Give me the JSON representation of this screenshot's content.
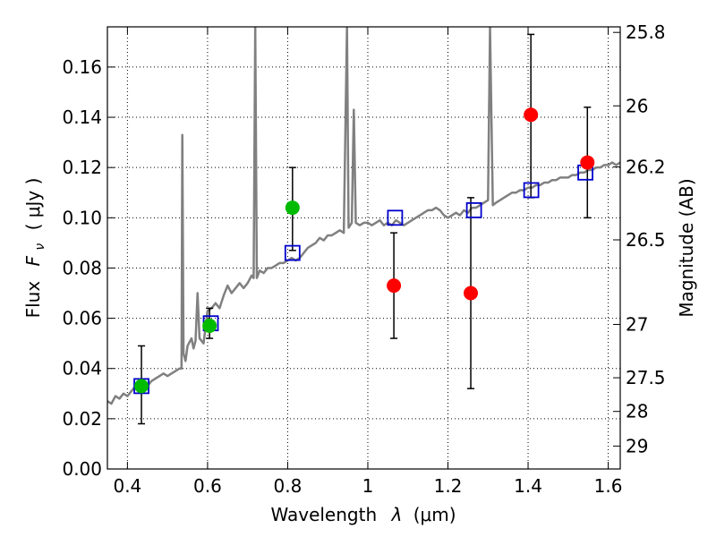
{
  "chart_data": {
    "type": "scatter",
    "xlabel_prefix": "Wavelength",
    "xlabel_lambda": "λ",
    "xlabel_unit": "(μm)",
    "ylabel_left_prefix": "Flux",
    "ylabel_left_sym": "F",
    "ylabel_left_sub": "ν",
    "ylabel_left_unit": "( μJy )",
    "ylabel_right": "Magnitude (AB)",
    "xlim": [
      0.35,
      1.63
    ],
    "ylim": [
      0.0,
      0.176
    ],
    "grid": true,
    "x_ticks": [
      {
        "value": 0.4,
        "label": "0.4"
      },
      {
        "value": 0.6,
        "label": "0.6"
      },
      {
        "value": 0.8,
        "label": "0.8"
      },
      {
        "value": 1.0,
        "label": "1"
      },
      {
        "value": 1.2,
        "label": "1.2"
      },
      {
        "value": 1.4,
        "label": "1.4"
      },
      {
        "value": 1.6,
        "label": "1.6"
      }
    ],
    "y_ticks": [
      {
        "value": 0.0,
        "label": "0.00"
      },
      {
        "value": 0.02,
        "label": "0.02"
      },
      {
        "value": 0.04,
        "label": "0.04"
      },
      {
        "value": 0.06,
        "label": "0.06"
      },
      {
        "value": 0.08,
        "label": "0.08"
      },
      {
        "value": 0.1,
        "label": "0.10"
      },
      {
        "value": 0.12,
        "label": "0.12"
      },
      {
        "value": 0.14,
        "label": "0.14"
      },
      {
        "value": 0.16,
        "label": "0.16"
      }
    ],
    "right_ticks": [
      {
        "label": "25.8",
        "mag": 25.8
      },
      {
        "label": "26",
        "mag": 26.0
      },
      {
        "label": "26.2",
        "mag": 26.2
      },
      {
        "label": "26.5",
        "mag": 26.5
      },
      {
        "label": "27",
        "mag": 27.0
      },
      {
        "label": "27.5",
        "mag": 27.5
      },
      {
        "label": "28",
        "mag": 28.0
      },
      {
        "label": "29",
        "mag": 29.0
      }
    ],
    "spectrum": {
      "color": "#808080",
      "points": [
        [
          0.35,
          0.027
        ],
        [
          0.36,
          0.026
        ],
        [
          0.37,
          0.029
        ],
        [
          0.38,
          0.028
        ],
        [
          0.39,
          0.03
        ],
        [
          0.4,
          0.029
        ],
        [
          0.41,
          0.031
        ],
        [
          0.42,
          0.033
        ],
        [
          0.43,
          0.032
        ],
        [
          0.44,
          0.034
        ],
        [
          0.45,
          0.033
        ],
        [
          0.46,
          0.035
        ],
        [
          0.47,
          0.036
        ],
        [
          0.48,
          0.037
        ],
        [
          0.49,
          0.038
        ],
        [
          0.5,
          0.037
        ],
        [
          0.51,
          0.038
        ],
        [
          0.52,
          0.039
        ],
        [
          0.53,
          0.04
        ],
        [
          0.535,
          0.04
        ],
        [
          0.537,
          0.133
        ],
        [
          0.54,
          0.046
        ],
        [
          0.545,
          0.043
        ],
        [
          0.55,
          0.049
        ],
        [
          0.56,
          0.052
        ],
        [
          0.565,
          0.048
        ],
        [
          0.57,
          0.051
        ],
        [
          0.575,
          0.07
        ],
        [
          0.58,
          0.052
        ],
        [
          0.59,
          0.05
        ],
        [
          0.6,
          0.063
        ],
        [
          0.61,
          0.064
        ],
        [
          0.62,
          0.066
        ],
        [
          0.63,
          0.064
        ],
        [
          0.64,
          0.069
        ],
        [
          0.65,
          0.073
        ],
        [
          0.66,
          0.07
        ],
        [
          0.67,
          0.072
        ],
        [
          0.68,
          0.074
        ],
        [
          0.69,
          0.072
        ],
        [
          0.7,
          0.074
        ],
        [
          0.71,
          0.077
        ],
        [
          0.715,
          0.076
        ],
        [
          0.719,
          0.176
        ],
        [
          0.723,
          0.076
        ],
        [
          0.73,
          0.079
        ],
        [
          0.74,
          0.078
        ],
        [
          0.75,
          0.08
        ],
        [
          0.76,
          0.08
        ],
        [
          0.77,
          0.081
        ],
        [
          0.78,
          0.082
        ],
        [
          0.79,
          0.082
        ],
        [
          0.8,
          0.083
        ],
        [
          0.81,
          0.084
        ],
        [
          0.82,
          0.083
        ],
        [
          0.83,
          0.084
        ],
        [
          0.84,
          0.086
        ],
        [
          0.85,
          0.088
        ],
        [
          0.86,
          0.089
        ],
        [
          0.87,
          0.09
        ],
        [
          0.88,
          0.092
        ],
        [
          0.89,
          0.091
        ],
        [
          0.9,
          0.093
        ],
        [
          0.91,
          0.093
        ],
        [
          0.92,
          0.094
        ],
        [
          0.93,
          0.095
        ],
        [
          0.94,
          0.094
        ],
        [
          0.948,
          0.176
        ],
        [
          0.952,
          0.096
        ],
        [
          0.96,
          0.098
        ],
        [
          0.965,
          0.143
        ],
        [
          0.97,
          0.098
        ],
        [
          0.98,
          0.097
        ],
        [
          0.99,
          0.098
        ],
        [
          1.0,
          0.098
        ],
        [
          1.01,
          0.097
        ],
        [
          1.02,
          0.098
        ],
        [
          1.03,
          0.099
        ],
        [
          1.04,
          0.097
        ],
        [
          1.05,
          0.098
        ],
        [
          1.06,
          0.097
        ],
        [
          1.07,
          0.099
        ],
        [
          1.08,
          0.098
        ],
        [
          1.09,
          0.097
        ],
        [
          1.1,
          0.098
        ],
        [
          1.11,
          0.099
        ],
        [
          1.12,
          0.1
        ],
        [
          1.13,
          0.101
        ],
        [
          1.14,
          0.102
        ],
        [
          1.15,
          0.103
        ],
        [
          1.16,
          0.103
        ],
        [
          1.17,
          0.104
        ],
        [
          1.18,
          0.103
        ],
        [
          1.19,
          0.101
        ],
        [
          1.2,
          0.1
        ],
        [
          1.21,
          0.101
        ],
        [
          1.22,
          0.102
        ],
        [
          1.23,
          0.101
        ],
        [
          1.24,
          0.103
        ],
        [
          1.25,
          0.102
        ],
        [
          1.26,
          0.104
        ],
        [
          1.27,
          0.104
        ],
        [
          1.28,
          0.105
        ],
        [
          1.29,
          0.106
        ],
        [
          1.3,
          0.107
        ],
        [
          1.305,
          0.176
        ],
        [
          1.312,
          0.105
        ],
        [
          1.32,
          0.106
        ],
        [
          1.33,
          0.107
        ],
        [
          1.34,
          0.108
        ],
        [
          1.35,
          0.109
        ],
        [
          1.36,
          0.11
        ],
        [
          1.37,
          0.11
        ],
        [
          1.38,
          0.111
        ],
        [
          1.39,
          0.111
        ],
        [
          1.4,
          0.112
        ],
        [
          1.41,
          0.112
        ],
        [
          1.42,
          0.113
        ],
        [
          1.43,
          0.113
        ],
        [
          1.44,
          0.114
        ],
        [
          1.45,
          0.114
        ],
        [
          1.46,
          0.115
        ],
        [
          1.47,
          0.115
        ],
        [
          1.48,
          0.116
        ],
        [
          1.49,
          0.116
        ],
        [
          1.5,
          0.116
        ],
        [
          1.51,
          0.117
        ],
        [
          1.52,
          0.117
        ],
        [
          1.53,
          0.118
        ],
        [
          1.54,
          0.118
        ],
        [
          1.55,
          0.119
        ],
        [
          1.56,
          0.119
        ],
        [
          1.57,
          0.12
        ],
        [
          1.58,
          0.12
        ],
        [
          1.59,
          0.121
        ],
        [
          1.6,
          0.121
        ],
        [
          1.61,
          0.122
        ],
        [
          1.62,
          0.121
        ],
        [
          1.63,
          0.122
        ]
      ]
    },
    "model_points": {
      "color": "#0000cc",
      "points": [
        {
          "x": 0.435,
          "y": 0.033
        },
        {
          "x": 0.608,
          "y": 0.058
        },
        {
          "x": 0.812,
          "y": 0.086
        },
        {
          "x": 1.068,
          "y": 0.1
        },
        {
          "x": 1.265,
          "y": 0.103
        },
        {
          "x": 1.408,
          "y": 0.111
        },
        {
          "x": 1.543,
          "y": 0.118
        }
      ]
    },
    "detections": {
      "color": "#00bb00",
      "points": [
        {
          "x": 0.435,
          "y": 0.033,
          "yerr_low": 0.018,
          "yerr_high": 0.049
        },
        {
          "x": 0.605,
          "y": 0.057,
          "yerr_low": 0.052,
          "yerr_high": 0.064
        },
        {
          "x": 0.812,
          "y": 0.104,
          "yerr_low": 0.087,
          "yerr_high": 0.12
        }
      ]
    },
    "upper_limits": {
      "color": "#ff0000",
      "points": [
        {
          "x": 1.065,
          "y": 0.073,
          "yerr_low": 0.052,
          "yerr_high": 0.094
        },
        {
          "x": 1.257,
          "y": 0.07,
          "yerr_low": 0.032,
          "yerr_high": 0.108
        },
        {
          "x": 1.407,
          "y": 0.141,
          "yerr_low": 0.108,
          "yerr_high": 0.173
        },
        {
          "x": 1.548,
          "y": 0.122,
          "yerr_low": 0.1,
          "yerr_high": 0.144
        }
      ]
    }
  }
}
